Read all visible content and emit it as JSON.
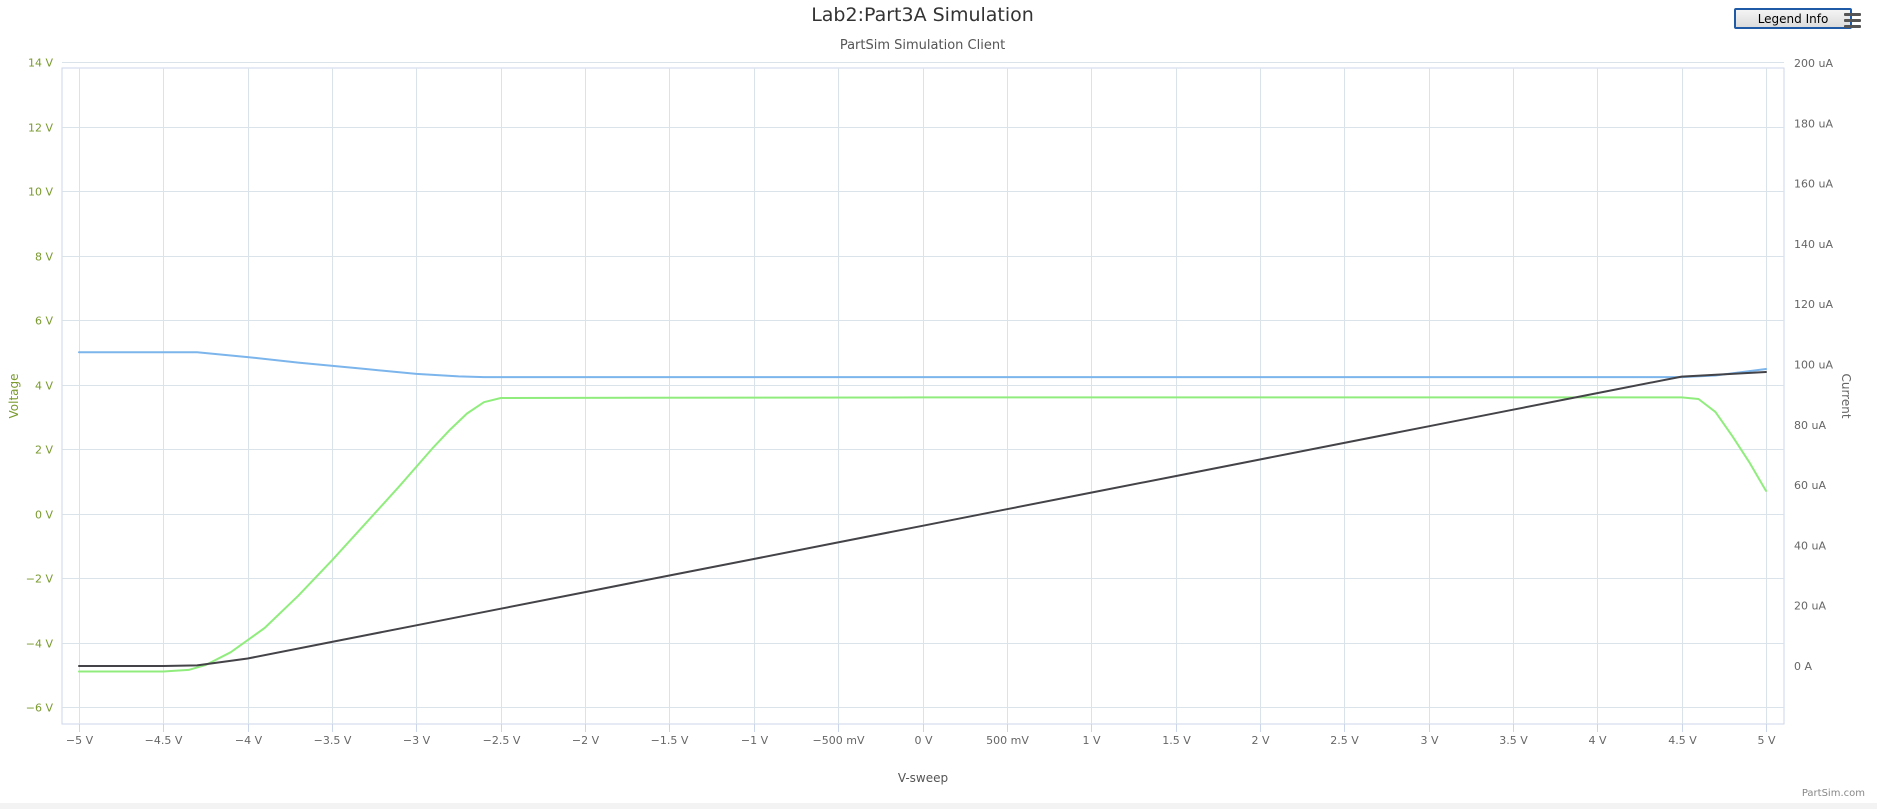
{
  "header": {
    "title": "Lab2:Part3A Simulation",
    "subtitle": "PartSim Simulation Client",
    "legend_button_label": "Legend Info",
    "menu_icon": "hamburger-menu-icon"
  },
  "credits": "PartSim.com",
  "colors": {
    "left_axis": "#7a9a2e",
    "right_axis": "#666666",
    "grid": "#dbe3ea",
    "blue_series": "#7cb5ec",
    "green_series": "#90ed7d",
    "black_series": "#434348"
  },
  "chart_data": {
    "type": "line",
    "title": "Lab2:Part3A Simulation",
    "subtitle": "PartSim Simulation Client",
    "xlabel": "V-sweep",
    "ylabel_left": "Voltage",
    "ylabel_right": "Current",
    "xlim": [
      -5,
      5
    ],
    "ylim_left": [
      -6,
      14
    ],
    "ylim_right": [
      -20,
      200
    ],
    "x_ticks": [
      -5,
      -4.5,
      -4,
      -3.5,
      -3,
      -2.5,
      -2,
      -1.5,
      -1,
      -0.5,
      0,
      0.5,
      1,
      1.5,
      2,
      2.5,
      3,
      3.5,
      4,
      4.5,
      5
    ],
    "x_tick_labels": [
      "−5 V",
      "−4.5 V",
      "−4 V",
      "−3.5 V",
      "−3 V",
      "−2.5 V",
      "−2 V",
      "−1.5 V",
      "−1 V",
      "−500 mV",
      "0 V",
      "500 mV",
      "1 V",
      "1.5 V",
      "2 V",
      "2.5 V",
      "3 V",
      "3.5 V",
      "4 V",
      "4.5 V",
      "5 V"
    ],
    "y_left_ticks": [
      -6,
      -4,
      -2,
      0,
      2,
      4,
      6,
      8,
      10,
      12,
      14
    ],
    "y_left_tick_labels": [
      "−6 V",
      "−4 V",
      "−2 V",
      "0 V",
      "2 V",
      "4 V",
      "6 V",
      "8 V",
      "10 V",
      "12 V",
      "14 V"
    ],
    "y_right_ticks": [
      0,
      20,
      40,
      60,
      80,
      100,
      120,
      140,
      160,
      180,
      200
    ],
    "y_right_tick_labels": [
      "0 A",
      "20 uA",
      "40 uA",
      "60 uA",
      "80 uA",
      "100 uA",
      "120 uA",
      "140 uA",
      "160 uA",
      "180 uA",
      "200 uA"
    ],
    "grid": true,
    "legend": "hidden",
    "series": [
      {
        "axis": "left",
        "color": "#7cb5ec",
        "x": [
          -5,
          -4.5,
          -4.3,
          -4.0,
          -3.7,
          -3.3,
          -3.0,
          -2.75,
          -2.6,
          -2.5,
          0,
          4.5,
          4.7,
          5.0
        ],
        "values": [
          5.0,
          5.0,
          5.0,
          4.85,
          4.68,
          4.48,
          4.33,
          4.25,
          4.23,
          4.23,
          4.23,
          4.23,
          4.28,
          4.48
        ]
      },
      {
        "axis": "left",
        "color": "#90ed7d",
        "x": [
          -5,
          -4.5,
          -4.35,
          -4.25,
          -4.1,
          -3.9,
          -3.7,
          -3.5,
          -3.3,
          -3.1,
          -2.9,
          -2.8,
          -2.7,
          -2.6,
          -2.5,
          0,
          4.5,
          4.6,
          4.7,
          4.8,
          4.9,
          5.0
        ],
        "values": [
          -4.9,
          -4.9,
          -4.85,
          -4.7,
          -4.3,
          -3.55,
          -2.55,
          -1.45,
          -0.3,
          0.85,
          2.05,
          2.6,
          3.1,
          3.45,
          3.58,
          3.6,
          3.6,
          3.55,
          3.15,
          2.4,
          1.6,
          0.7
        ]
      },
      {
        "axis": "right",
        "color": "#434348",
        "x": [
          -5,
          -4.5,
          -4.3,
          -4.0,
          -3.5,
          -3.0,
          -2.5,
          -2.0,
          -1.5,
          -1.0,
          -0.5,
          0,
          0.5,
          1.0,
          1.5,
          2.0,
          2.5,
          3.0,
          3.5,
          4.0,
          4.5,
          5.0
        ],
        "values": [
          0,
          0,
          0.2,
          2.5,
          8.0,
          13.5,
          19.0,
          24.5,
          30.0,
          35.5,
          41.0,
          46.5,
          52.0,
          57.5,
          63.0,
          68.5,
          74.0,
          79.5,
          85.0,
          90.5,
          96.0,
          97.5
        ]
      }
    ]
  }
}
